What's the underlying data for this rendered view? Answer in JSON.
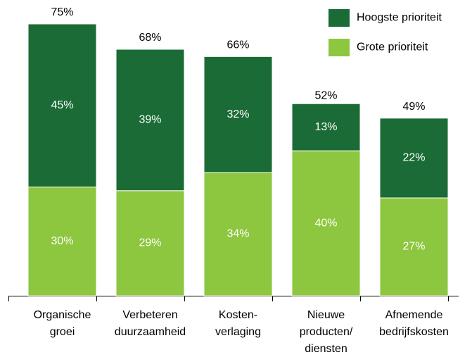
{
  "chart_data": {
    "type": "stacked_bar",
    "categories": [
      [
        "Organische",
        "groei"
      ],
      [
        "Verbeteren",
        "duurzaamheid"
      ],
      [
        "Kosten-",
        "verlaging"
      ],
      [
        "Nieuwe",
        "producten/",
        "diensten"
      ],
      [
        "Afnemende",
        "bedrijfskosten"
      ]
    ],
    "series": [
      {
        "name": "Grote prioriteit",
        "color": "#8dc63f",
        "values": [
          30,
          29,
          34,
          40,
          27
        ],
        "value_labels": [
          "30%",
          "29%",
          "34%",
          "40%",
          "27%"
        ]
      },
      {
        "name": "Hoogste prioriteit",
        "color": "#1a6b35",
        "values": [
          45,
          39,
          32,
          13,
          22
        ],
        "value_labels": [
          "45%",
          "39%",
          "32%",
          "13%",
          "22%"
        ]
      }
    ],
    "totals": [
      75,
      68,
      66,
      52,
      49
    ],
    "total_labels": [
      "75%",
      "68%",
      "66%",
      "52%",
      "49%"
    ],
    "ylim": [
      0,
      75
    ]
  }
}
